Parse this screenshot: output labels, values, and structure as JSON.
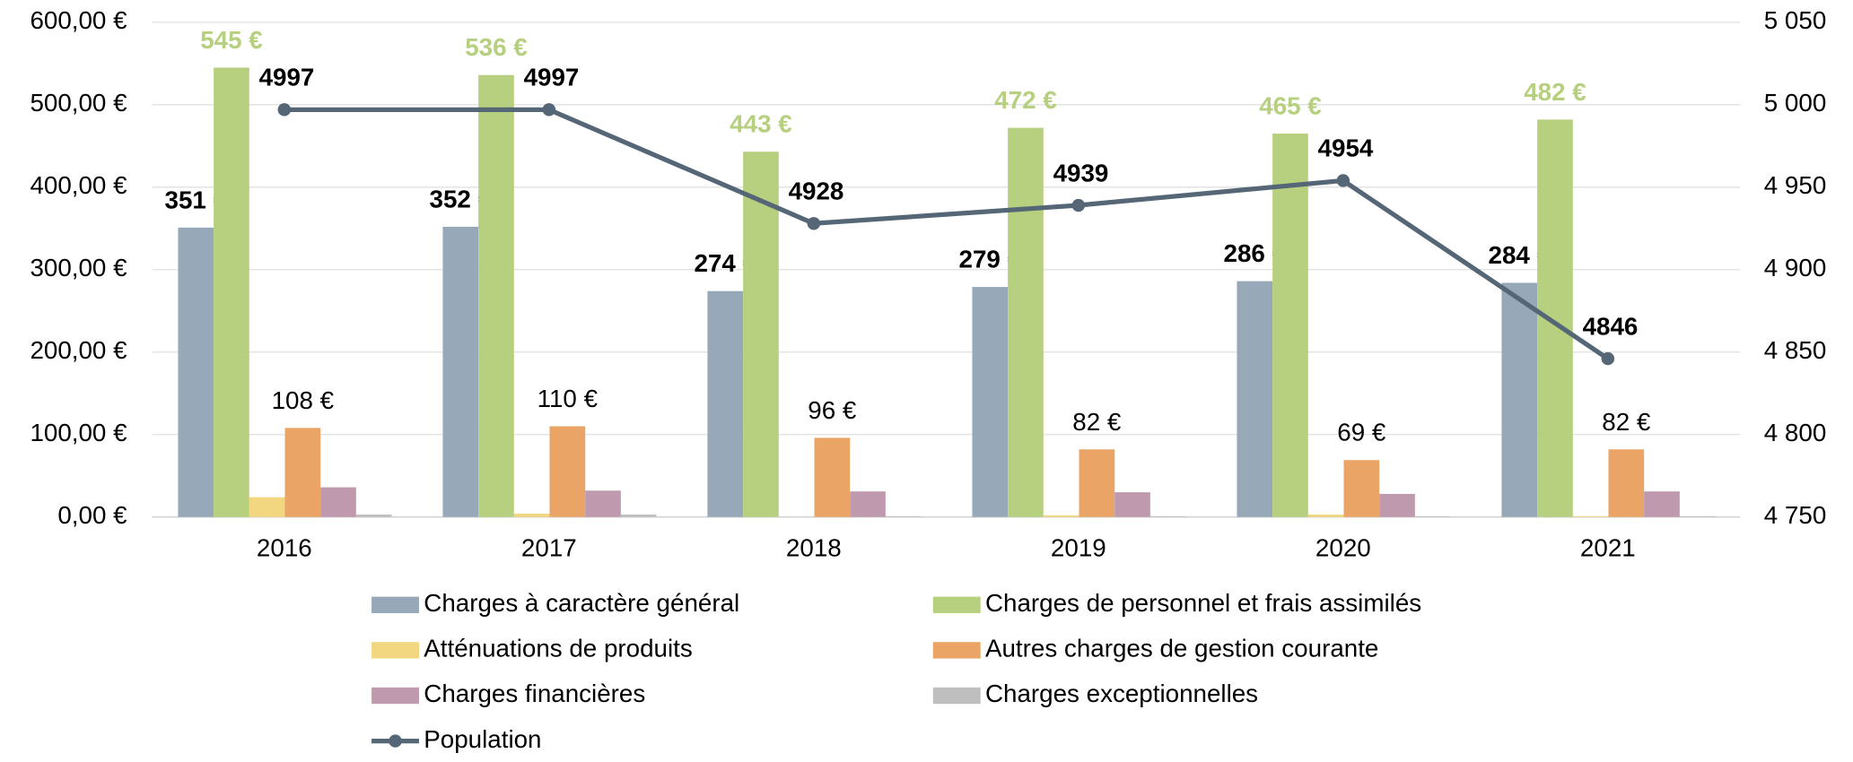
{
  "chart_data": {
    "type": "bar",
    "categories": [
      "2016",
      "2017",
      "2018",
      "2019",
      "2020",
      "2021"
    ],
    "series": [
      {
        "name": "Charges à caractère général",
        "color": "#97a9b8",
        "values": [
          351,
          352,
          274,
          279,
          286,
          284
        ],
        "value_labels": [
          "351 €",
          "352 €",
          "274 €",
          "279 €",
          "286 €",
          "284 €"
        ]
      },
      {
        "name": "Charges de personnel et frais assimilés",
        "color": "#b6d07f",
        "values": [
          545,
          536,
          443,
          472,
          465,
          482
        ],
        "value_labels": [
          "545 €",
          "536 €",
          "443 €",
          "472 €",
          "465 €",
          "482 €"
        ]
      },
      {
        "name": "Atténuations de produits",
        "color": "#f2d680",
        "values": [
          24,
          4,
          0,
          2,
          3,
          1
        ]
      },
      {
        "name": "Autres charges de gestion courante",
        "color": "#e9a466",
        "values": [
          108,
          110,
          96,
          82,
          69,
          82
        ],
        "value_labels": [
          "108 €",
          "110 €",
          "96 €",
          "82 €",
          "69 €",
          "82 €"
        ]
      },
      {
        "name": "Charges financières",
        "color": "#bf9aae",
        "values": [
          36,
          32,
          31,
          30,
          28,
          31
        ]
      },
      {
        "name": "Charges exceptionnelles",
        "color": "#bfbfbf",
        "values": [
          3,
          3,
          1,
          1,
          1,
          1
        ]
      },
      {
        "name": "Population",
        "type": "line",
        "axis": "y2",
        "color": "#556677",
        "values": [
          4997,
          4997,
          4928,
          4939,
          4954,
          4846
        ]
      }
    ],
    "ylim": [
      0,
      600
    ],
    "yticks": [
      {
        "value": 0,
        "label": "0,00 €"
      },
      {
        "value": 100,
        "label": "100,00 €"
      },
      {
        "value": 200,
        "label": "200,00 €"
      },
      {
        "value": 300,
        "label": "300,00 €"
      },
      {
        "value": 400,
        "label": "400,00 €"
      },
      {
        "value": 500,
        "label": "500,00 €"
      },
      {
        "value": 600,
        "label": "600,00 €"
      }
    ],
    "y2lim": [
      4750,
      5050
    ],
    "y2ticks": [
      {
        "value": 4750,
        "label": "4 750"
      },
      {
        "value": 4800,
        "label": "4 800"
      },
      {
        "value": 4850,
        "label": "4 850"
      },
      {
        "value": 4900,
        "label": "4 900"
      },
      {
        "value": 4950,
        "label": "4 950"
      },
      {
        "value": 5000,
        "label": "5 000"
      },
      {
        "value": 5050,
        "label": "5 050"
      }
    ],
    "grid": true,
    "legend": "bottom"
  }
}
